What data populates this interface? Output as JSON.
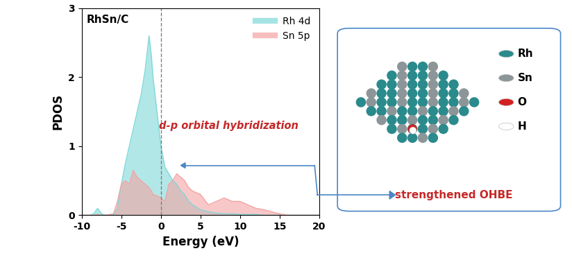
{
  "chart_data": {
    "type": "area",
    "title": "RhSn/C",
    "x_label": "Energy (eV)",
    "y_label": "PDOS",
    "x": [
      -10,
      -9,
      -8.5,
      -8,
      -7.5,
      -7,
      -6,
      -5.5,
      -5,
      -4.5,
      -4,
      -3.5,
      -3,
      -2.5,
      -2,
      -1.5,
      -1.2,
      -1,
      -0.5,
      0,
      0.5,
      1,
      1.5,
      2,
      2.5,
      3,
      3.5,
      4,
      5,
      6,
      7,
      8,
      9,
      10,
      11,
      12,
      13,
      14,
      15,
      16,
      18,
      20
    ],
    "series": [
      {
        "name": "Rh 4d",
        "color": "#7fd8d8",
        "values": [
          0,
          0,
          0.02,
          0.1,
          0.02,
          0,
          0.01,
          0.1,
          0.45,
          0.75,
          1.0,
          1.25,
          1.5,
          1.75,
          2.1,
          2.6,
          2.3,
          2.0,
          1.5,
          1.0,
          0.7,
          0.6,
          0.5,
          0.45,
          0.35,
          0.3,
          0.2,
          0.15,
          0.08,
          0.05,
          0.03,
          0.02,
          0.02,
          0.01,
          0.01,
          0.01,
          0,
          0,
          0,
          0,
          0,
          0
        ]
      },
      {
        "name": "Sn 5p",
        "color": "#f4a3a3",
        "values": [
          0,
          0,
          0,
          0.01,
          0,
          0,
          0.02,
          0.2,
          0.45,
          0.5,
          0.45,
          0.65,
          0.55,
          0.5,
          0.45,
          0.4,
          0.35,
          0.3,
          0.28,
          0.25,
          0.2,
          0.45,
          0.5,
          0.6,
          0.55,
          0.5,
          0.4,
          0.35,
          0.3,
          0.15,
          0.2,
          0.25,
          0.2,
          0.2,
          0.15,
          0.1,
          0.08,
          0.05,
          0.02,
          0,
          0,
          0
        ]
      }
    ],
    "vline": 0,
    "xlim": [
      -10,
      20
    ],
    "ylim": [
      0,
      3
    ],
    "xticks": [
      -10,
      -5,
      0,
      5,
      10,
      15,
      20
    ],
    "yticks": [
      0,
      1,
      2,
      3
    ],
    "legend": "upper right",
    "annotations": [
      "d-p orbital hybridization"
    ]
  },
  "diagram": {
    "legend": [
      {
        "label": "Rh",
        "color": "#2a8a8c"
      },
      {
        "label": "Sn",
        "color": "#8c9598"
      },
      {
        "label": "O",
        "color": "#d42020"
      },
      {
        "label": "H",
        "color": "#ffffff"
      }
    ],
    "label": "strengthened OHBE"
  }
}
